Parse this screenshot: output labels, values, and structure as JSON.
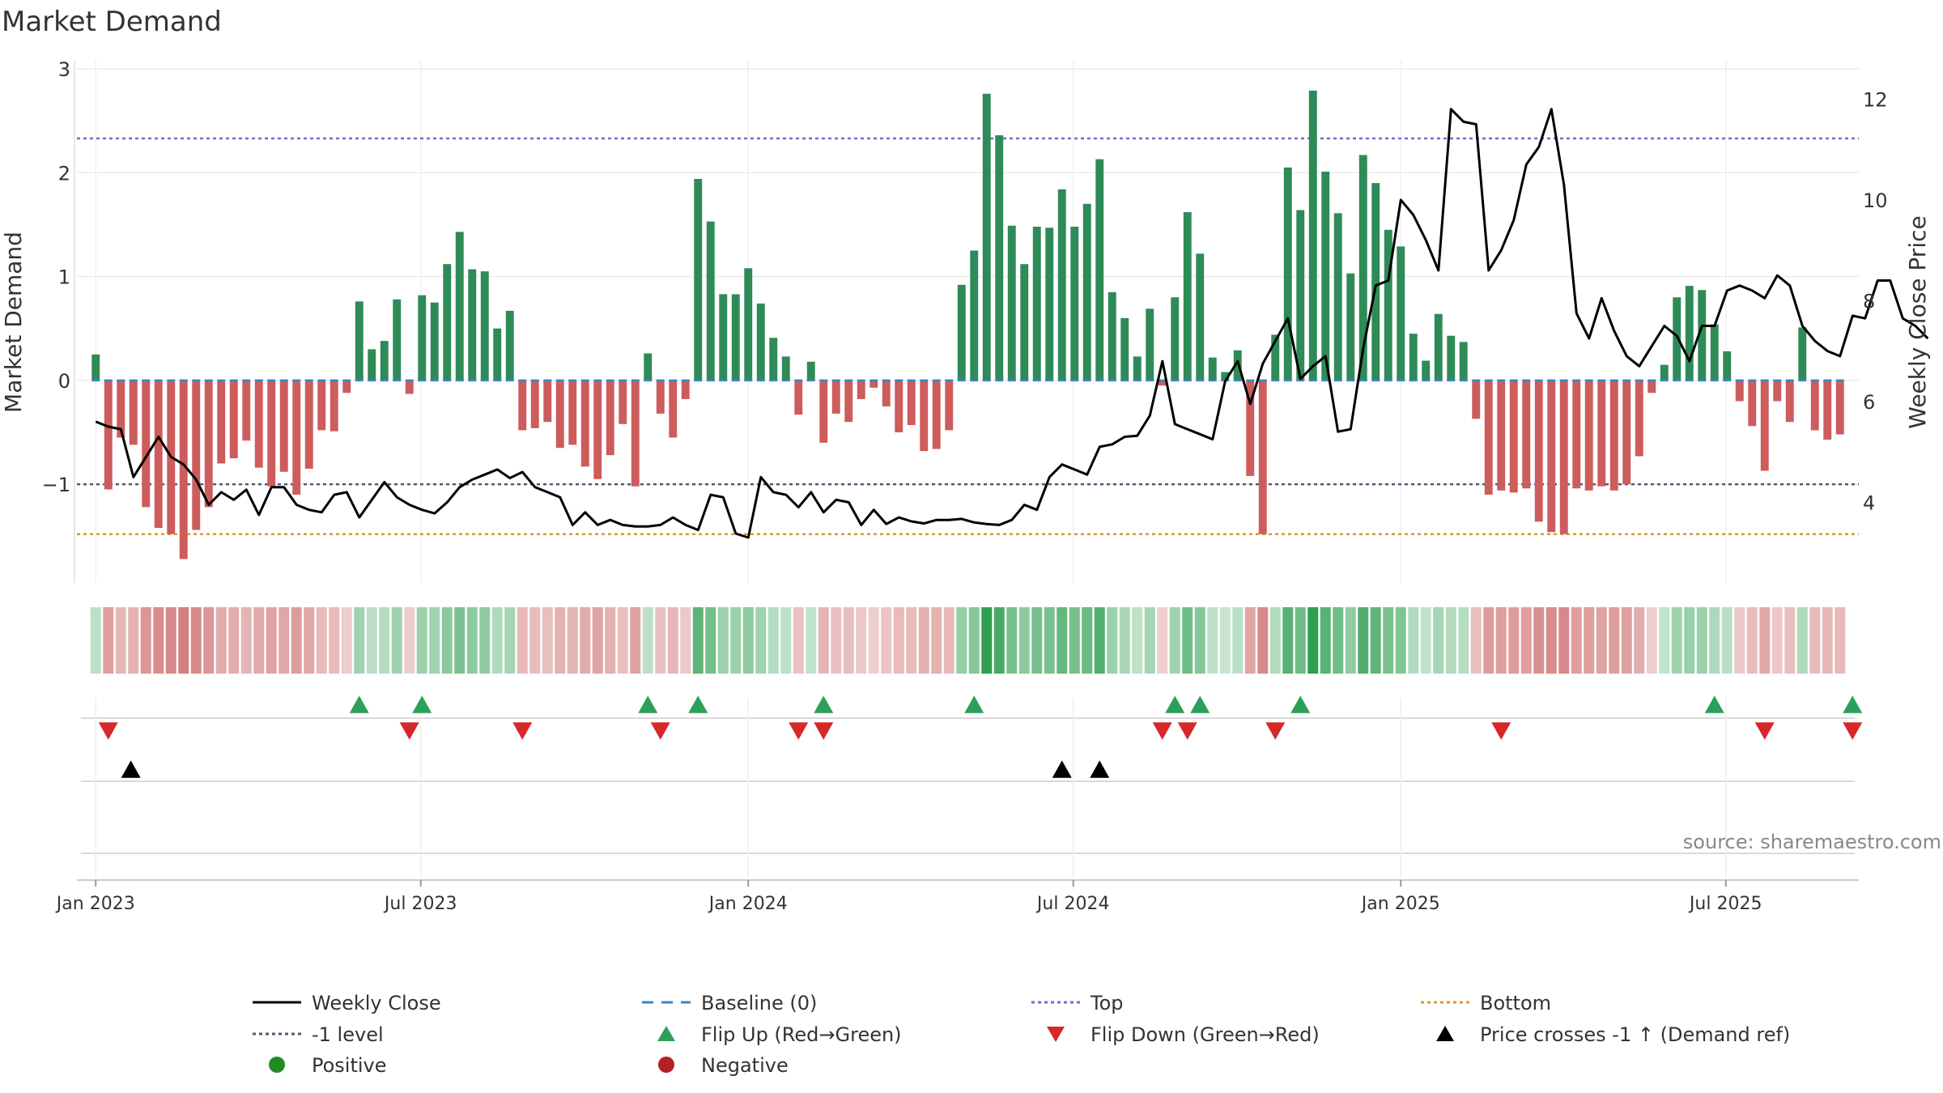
{
  "chart_data": {
    "type": "bar",
    "title": "Market Demand",
    "ylabel": "Market Demand",
    "y2label": "Weekly Close Price",
    "ylim": [
      -1.95,
      3.0
    ],
    "y2lim": [
      2.4,
      12.6
    ],
    "yticks": [
      3,
      2,
      1,
      0,
      -1
    ],
    "ytick_labels": [
      "3",
      "2",
      "1",
      "0",
      "−1"
    ],
    "y2ticks": [
      12,
      10,
      8,
      6,
      4
    ],
    "y2tick_labels": [
      "12",
      "10",
      "8",
      "6",
      "4"
    ],
    "x_start_week_offset": -1.5,
    "x_end_week_offset": 140.5,
    "xticks": [
      {
        "label": "Jan 2023",
        "week": 0
      },
      {
        "label": "Jul 2023",
        "week": 25.9
      },
      {
        "label": "Jan 2024",
        "week": 52
      },
      {
        "label": "Jul 2024",
        "week": 77.9
      },
      {
        "label": "Jan 2025",
        "week": 104
      },
      {
        "label": "Jul 2025",
        "week": 129.9
      }
    ],
    "reference_lines": {
      "top": 2.33,
      "minus_one": -1.0,
      "bottom": -1.48,
      "baseline": 0
    },
    "demand": [
      0.25,
      -1.05,
      -0.55,
      -0.62,
      -1.22,
      -1.42,
      -1.48,
      -1.72,
      -1.44,
      -1.22,
      -0.8,
      -0.75,
      -0.58,
      -0.84,
      -1.02,
      -0.88,
      -1.1,
      -0.85,
      -0.48,
      -0.49,
      -0.12,
      0.76,
      0.3,
      0.38,
      0.78,
      -0.13,
      0.82,
      0.75,
      1.12,
      1.43,
      1.07,
      1.05,
      0.5,
      0.67,
      -0.48,
      -0.46,
      -0.4,
      -0.65,
      -0.62,
      -0.83,
      -0.95,
      -0.72,
      -0.42,
      -1.02,
      0.26,
      -0.32,
      -0.55,
      -0.18,
      1.94,
      1.53,
      0.83,
      0.83,
      1.08,
      0.74,
      0.41,
      0.23,
      -0.33,
      0.18,
      -0.6,
      -0.32,
      -0.4,
      -0.18,
      -0.07,
      -0.25,
      -0.5,
      -0.43,
      -0.68,
      -0.66,
      -0.48,
      0.92,
      1.25,
      2.76,
      2.36,
      1.49,
      1.12,
      1.48,
      1.47,
      1.84,
      1.48,
      1.7,
      2.13,
      0.85,
      0.6,
      0.23,
      0.69,
      -0.05,
      0.8,
      1.62,
      1.22,
      0.22,
      0.08,
      0.29,
      -0.92,
      -1.48,
      0.44,
      2.05,
      1.64,
      2.79,
      2.01,
      1.61,
      1.03,
      2.17,
      1.9,
      1.45,
      1.29,
      0.45,
      0.19,
      0.64,
      0.43,
      0.37,
      -0.37,
      -1.1,
      -1.06,
      -1.08,
      -1.04,
      -1.36,
      -1.46,
      -1.48,
      -1.04,
      -1.06,
      -1.02,
      -1.06,
      -1.0,
      -0.73,
      -0.12,
      0.15,
      0.8,
      0.91,
      0.87,
      0.54,
      0.28,
      -0.2,
      -0.44,
      -0.87,
      -0.2,
      -0.4,
      0.51,
      -0.48,
      -0.57,
      -0.52
    ],
    "series_price": {
      "name": "Weekly Close",
      "values": [
        5.6,
        5.5,
        5.45,
        4.5,
        4.9,
        5.3,
        4.9,
        4.75,
        4.45,
        3.95,
        4.2,
        4.05,
        4.25,
        3.75,
        4.3,
        4.3,
        3.95,
        3.85,
        3.8,
        4.15,
        4.2,
        3.7,
        4.05,
        4.4,
        4.1,
        3.95,
        3.85,
        3.78,
        4.0,
        4.3,
        4.45,
        4.55,
        4.65,
        4.48,
        4.6,
        4.3,
        4.2,
        4.1,
        3.55,
        3.8,
        3.55,
        3.65,
        3.55,
        3.52,
        3.52,
        3.55,
        3.7,
        3.55,
        3.45,
        4.15,
        4.1,
        3.38,
        3.3,
        4.5,
        4.2,
        4.15,
        3.9,
        4.2,
        3.8,
        4.05,
        4.0,
        3.55,
        3.85,
        3.57,
        3.7,
        3.62,
        3.58,
        3.65,
        3.65,
        3.67,
        3.6,
        3.57,
        3.55,
        3.65,
        3.95,
        3.85,
        4.5,
        4.75,
        4.65,
        4.55,
        5.1,
        5.15,
        5.3,
        5.32,
        5.72,
        6.8,
        5.55,
        5.45,
        5.35,
        5.25,
        6.4,
        6.8,
        5.95,
        6.75,
        7.2,
        7.65,
        6.45,
        6.7,
        6.9,
        5.4,
        5.45,
        7.05,
        8.3,
        8.4,
        10.0,
        9.7,
        9.2,
        8.6,
        11.8,
        11.55,
        11.5,
        8.6,
        9.0,
        9.6,
        10.7,
        11.05,
        11.8,
        10.3,
        7.75,
        7.25,
        8.05,
        7.4,
        6.9,
        6.7,
        7.1,
        7.5,
        7.3,
        6.8,
        7.5,
        7.5,
        8.2,
        8.3,
        8.2,
        8.05,
        8.5,
        8.3,
        7.5,
        7.2,
        7.0,
        6.9,
        7.7,
        7.65,
        8.4,
        8.4,
        7.65,
        7.5,
        7.25
      ]
    },
    "flip_up_weeks": [
      21,
      26,
      44,
      48,
      58,
      70,
      86,
      88,
      96,
      129,
      140
    ],
    "flip_down_weeks": [
      1,
      25,
      34,
      45,
      56,
      58,
      85,
      87,
      94,
      112,
      133,
      140
    ],
    "price_cross_weeks": [
      2.8,
      77,
      80
    ],
    "legend": [
      {
        "label": "Weekly Close",
        "marker": "line-solid",
        "color": "#000000"
      },
      {
        "label": "Baseline (0)",
        "marker": "line-dash",
        "color": "#3a84c4"
      },
      {
        "label": "Top",
        "marker": "line-dot",
        "color": "#6e6ec8"
      },
      {
        "label": "Bottom",
        "marker": "line-dot",
        "color": "#d99a30"
      },
      {
        "label": "-1 level",
        "marker": "line-dot",
        "color": "#555577"
      },
      {
        "label": "Flip Up (Red→Green)",
        "marker": "triangle-up",
        "color": "#2ca05a"
      },
      {
        "label": "Flip Down (Green→Red)",
        "marker": "triangle-down",
        "color": "#d62828"
      },
      {
        "label": "Price crosses -1 ↑ (Demand ref)",
        "marker": "triangle-up",
        "color": "#000000"
      },
      {
        "label": "Positive",
        "marker": "circle",
        "color": "#228b22"
      },
      {
        "label": "Negative",
        "marker": "circle",
        "color": "#b22222"
      }
    ],
    "colors": {
      "positive": "#2e8b57",
      "negative": "#cd5c5c",
      "price_line": "#000000",
      "baseline": "#3a84c4",
      "top": "#6e6ec8",
      "minus_one": "#555577",
      "bottom": "#d99a30",
      "flip_up": "#2ca05a",
      "flip_down": "#d62828",
      "cross": "#000000",
      "heat_pos": "#2e9e4f",
      "heat_neg": "#c24a4a"
    }
  },
  "footer": {
    "source": "source: sharemaestro.com"
  }
}
